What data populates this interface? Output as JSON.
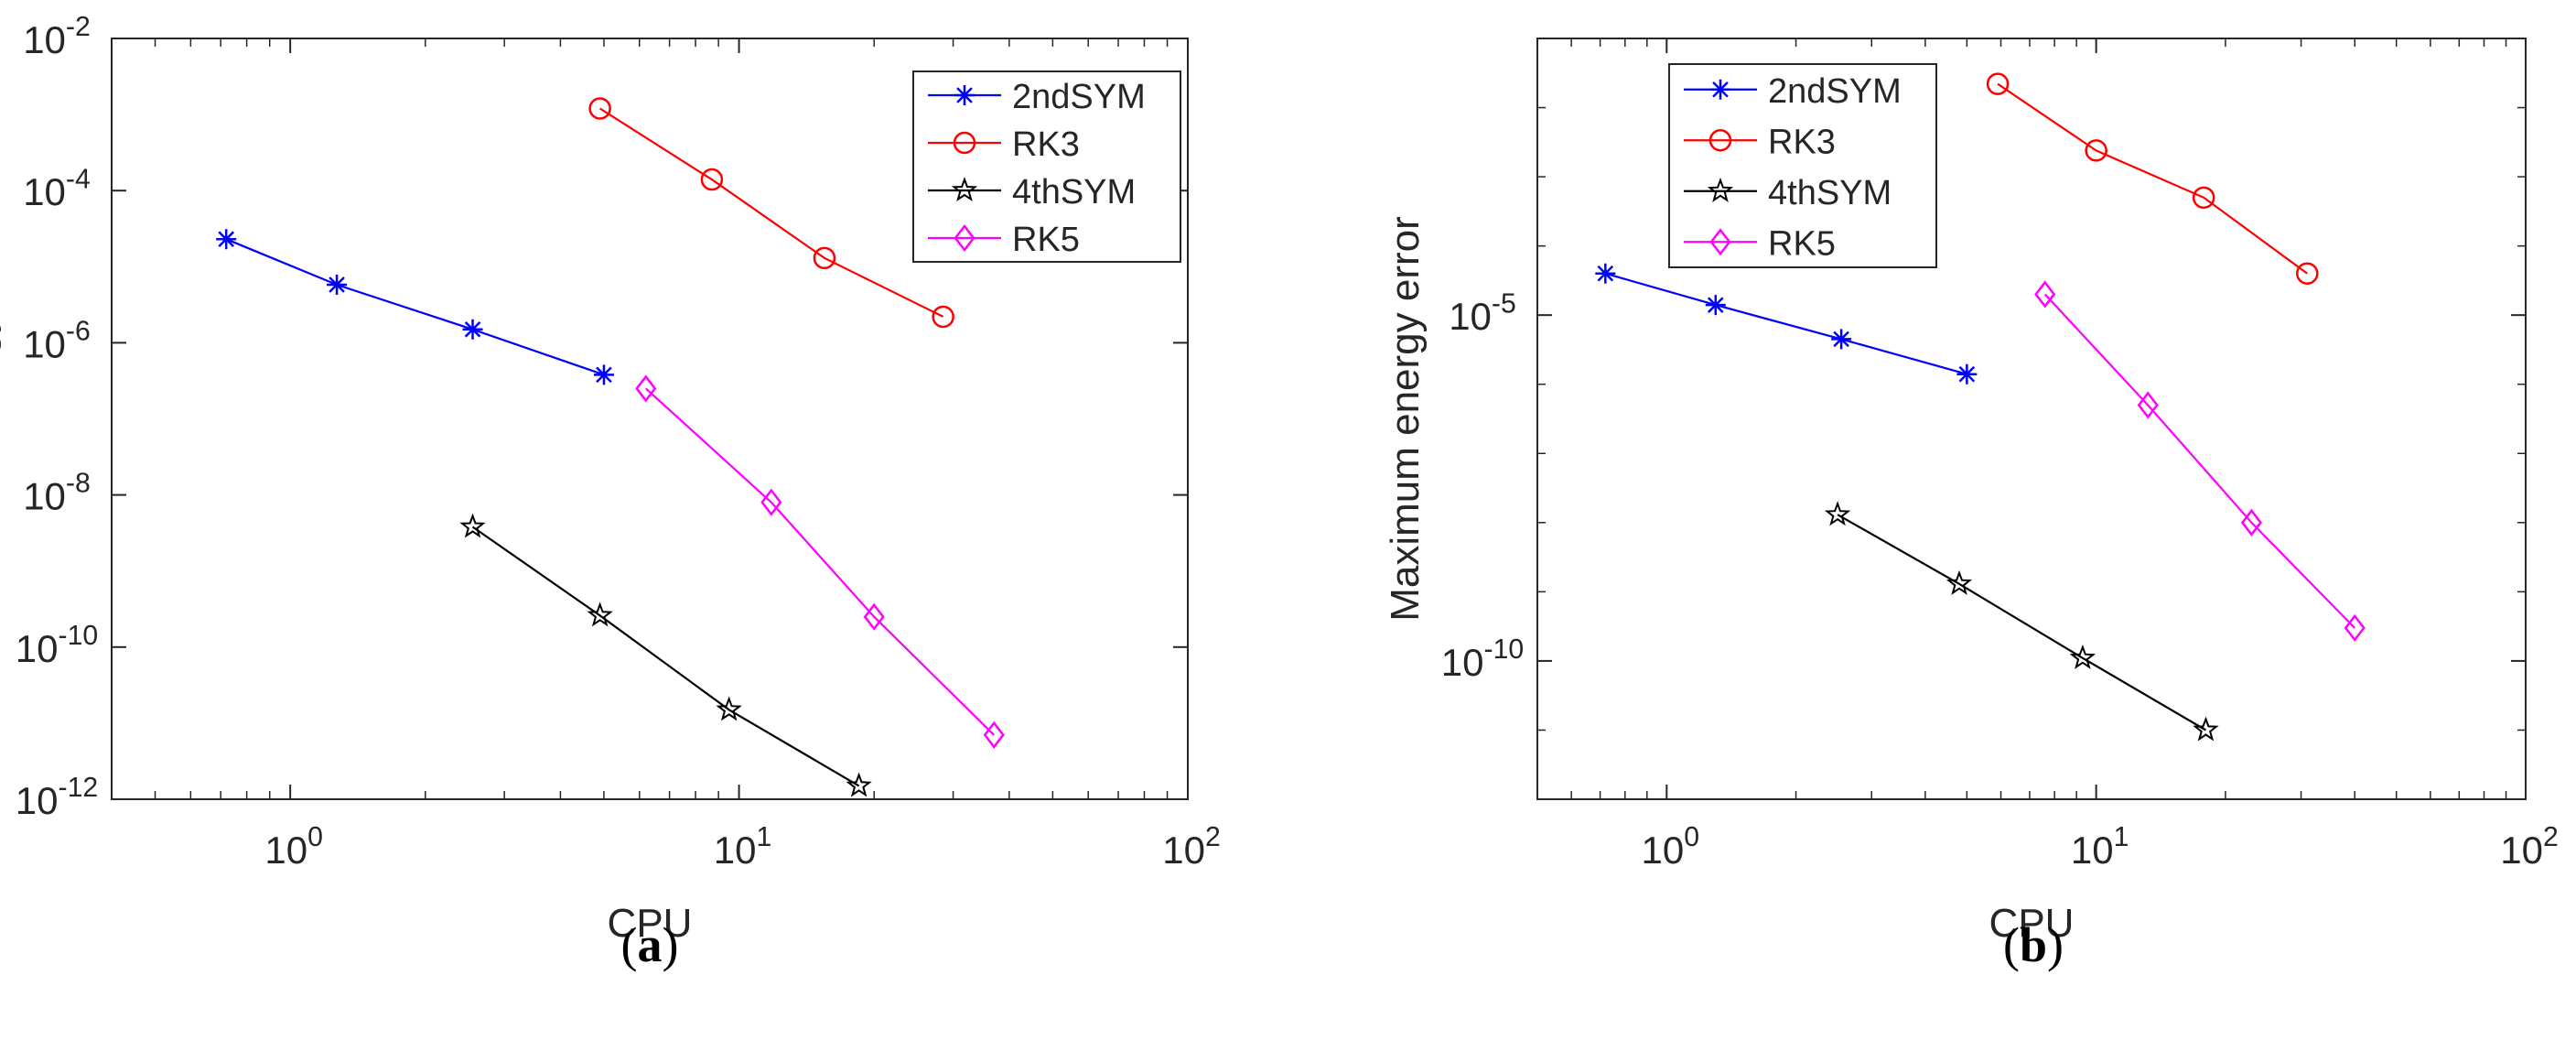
{
  "chart_data": [
    {
      "panel": "(a)",
      "panel_letter": "a",
      "type": "line",
      "xscale": "log",
      "yscale": "log",
      "xlabel": "CPU",
      "ylabel": "Maximum energy error",
      "xlim": [
        0.4,
        100
      ],
      "ylim": [
        1e-12,
        0.01
      ],
      "xticks": [
        {
          "base": "10",
          "exp": "0",
          "value": 1
        },
        {
          "base": "10",
          "exp": "1",
          "value": 10
        },
        {
          "base": "10",
          "exp": "2",
          "value": 100
        }
      ],
      "yticks": [
        {
          "base": "10",
          "exp": "-12",
          "value": 1e-12
        },
        {
          "base": "10",
          "exp": "-10",
          "value": 1e-10
        },
        {
          "base": "10",
          "exp": "-8",
          "value": 1e-08
        },
        {
          "base": "10",
          "exp": "-6",
          "value": 1e-06
        },
        {
          "base": "10",
          "exp": "-4",
          "value": 0.0001
        },
        {
          "base": "10",
          "exp": "-2",
          "value": 0.01
        }
      ],
      "legend_position": "top-right",
      "series": [
        {
          "name": "2ndSYM",
          "color": "#0000ff",
          "marker": "asterisk",
          "x": [
            0.72,
            1.27,
            2.55,
            5.0
          ],
          "y": [
            2.3e-05,
            5.8e-06,
            1.5e-06,
            3.8e-07
          ]
        },
        {
          "name": "RK3",
          "color": "#ff0000",
          "marker": "circle",
          "x": [
            4.9,
            8.7,
            15.5,
            28.5
          ],
          "y": [
            0.0012,
            0.00014,
            1.3e-05,
            2.2e-06
          ]
        },
        {
          "name": "4thSYM",
          "color": "#000000",
          "marker": "star",
          "x": [
            2.55,
            4.9,
            9.5,
            18.5
          ],
          "y": [
            3.8e-09,
            2.6e-10,
            1.5e-11,
            1.5e-12
          ]
        },
        {
          "name": "RK5",
          "color": "#ff00ff",
          "marker": "diamond",
          "x": [
            6.2,
            11.8,
            20.0,
            37.0
          ],
          "y": [
            2.5e-07,
            8e-09,
            2.5e-10,
            7e-12
          ]
        }
      ]
    },
    {
      "panel": "(b)",
      "panel_letter": "b",
      "type": "line",
      "xscale": "log",
      "yscale": "log",
      "xlabel": "CPU",
      "ylabel": "Maximum energy error",
      "xlim": [
        0.5,
        100
      ],
      "ylim": [
        1e-12,
        0.1
      ],
      "xticks": [
        {
          "base": "10",
          "exp": "0",
          "value": 1
        },
        {
          "base": "10",
          "exp": "1",
          "value": 10
        },
        {
          "base": "10",
          "exp": "2",
          "value": 100
        }
      ],
      "yticks": [
        {
          "base": "10",
          "exp": "-10",
          "value": 1e-10
        },
        {
          "base": "10",
          "exp": "-5",
          "value": 1e-05
        }
      ],
      "legend_position": "top-left",
      "series": [
        {
          "name": "2ndSYM",
          "color": "#0000ff",
          "marker": "asterisk",
          "x": [
            0.72,
            1.3,
            2.55,
            5.0
          ],
          "y": [
            4e-05,
            1.4e-05,
            4.5e-06,
            1.4e-06
          ]
        },
        {
          "name": "RK3",
          "color": "#ff0000",
          "marker": "circle",
          "x": [
            5.9,
            10.0,
            17.8,
            31.0
          ],
          "y": [
            0.022,
            0.0024,
            0.0005,
            4e-05
          ]
        },
        {
          "name": "4thSYM",
          "color": "#000000",
          "marker": "star",
          "x": [
            2.5,
            4.8,
            9.3,
            18.0
          ],
          "y": [
            1.3e-08,
            1.3e-09,
            1.1e-10,
            1e-11
          ]
        },
        {
          "name": "RK5",
          "color": "#ff00ff",
          "marker": "diamond",
          "x": [
            7.6,
            13.2,
            23.0,
            40.0
          ],
          "y": [
            2e-05,
            5e-07,
            1e-08,
            3e-10
          ]
        }
      ]
    }
  ]
}
